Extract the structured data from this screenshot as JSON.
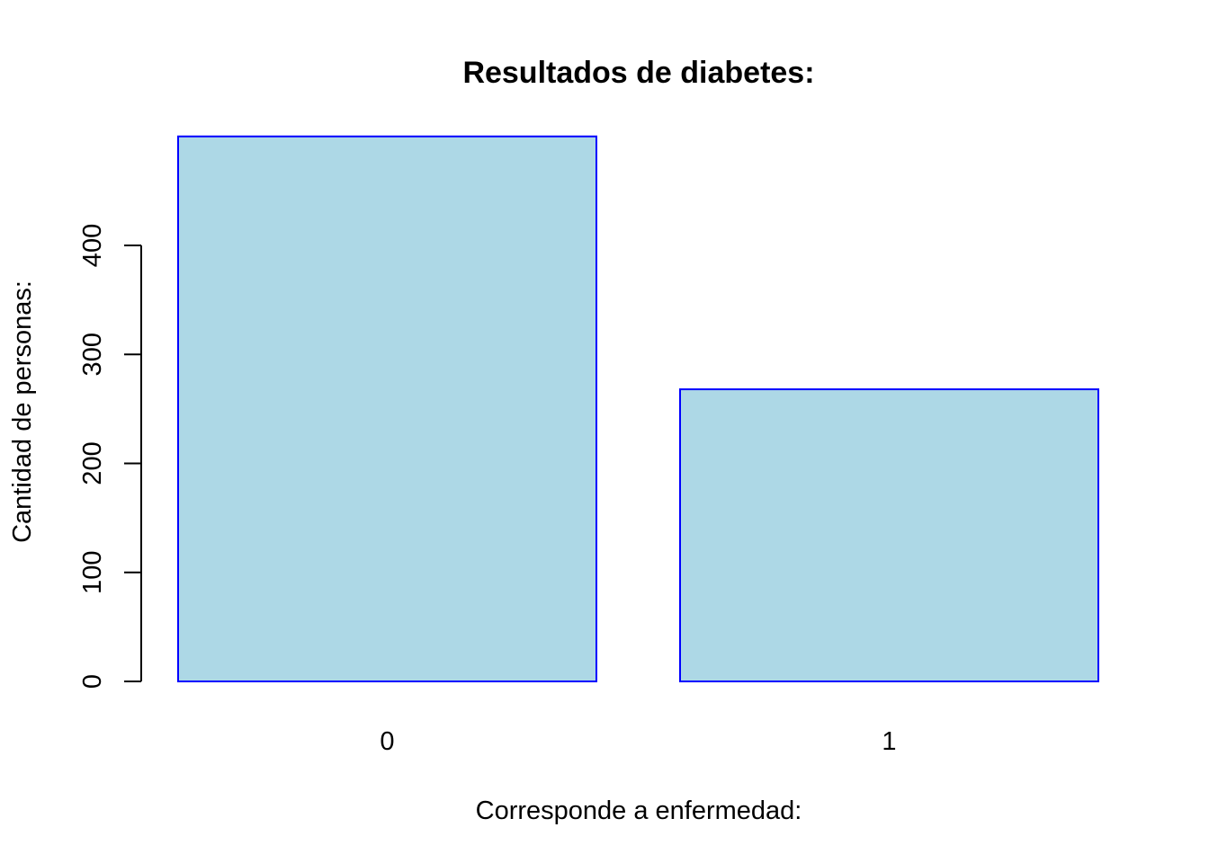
{
  "chart_data": {
    "type": "bar",
    "title": "Resultados de diabetes:",
    "xlabel": "Corresponde a enfermedad:",
    "ylabel": "Cantidad de personas:",
    "categories": [
      "0",
      "1"
    ],
    "values": [
      500,
      268
    ],
    "y_ticks": [
      "0",
      "100",
      "200",
      "300",
      "400"
    ],
    "ylim": [
      0,
      500
    ],
    "grid": false,
    "legend": "none",
    "colors": {
      "bar_fill": "#ADD8E6",
      "bar_border": "#0000FF",
      "axis": "#000000",
      "text": "#000000"
    }
  }
}
